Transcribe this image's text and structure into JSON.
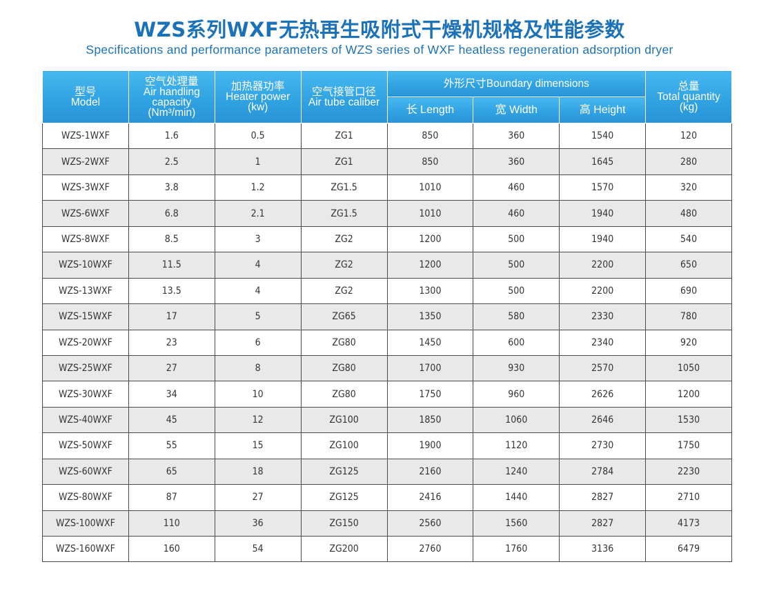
{
  "title_cn": "WZS系列WXF无热再生吸附式干燥机规格及性能参数",
  "title_en": "Specifications and performance parameters of WZS series of WXF heatless regeneration adsorption dryer",
  "colors": {
    "accent": "#1b72b8",
    "header_bg": "#2fa1e1",
    "stripe": "#e9e9e9"
  },
  "header": {
    "model": [
      "型号",
      "Model"
    ],
    "air": [
      "空气处理量",
      "Air handling",
      "capacity",
      "(Nm³/min)"
    ],
    "heater": [
      "加热器功率",
      "Heater power",
      "(kw)"
    ],
    "tube": [
      "空气接管口径",
      "Air tube caliber"
    ],
    "dims": "外形尺寸Boundary dimensions",
    "length": "长 Length",
    "width": "宽 Width",
    "height": "高 Height",
    "total": [
      "总量",
      "Total quantity",
      "(kg)"
    ]
  },
  "rows": [
    [
      "WZS-1WXF",
      "1.6",
      "0.5",
      "ZG1",
      "850",
      "360",
      "1540",
      "120"
    ],
    [
      "WZS-2WXF",
      "2.5",
      "1",
      "ZG1",
      "850",
      "360",
      "1645",
      "280"
    ],
    [
      "WZS-3WXF",
      "3.8",
      "1.2",
      "ZG1.5",
      "1010",
      "460",
      "1570",
      "320"
    ],
    [
      "WZS-6WXF",
      "6.8",
      "2.1",
      "ZG1.5",
      "1010",
      "460",
      "1940",
      "480"
    ],
    [
      "WZS-8WXF",
      "8.5",
      "3",
      "ZG2",
      "1200",
      "500",
      "1940",
      "540"
    ],
    [
      "WZS-10WXF",
      "11.5",
      "4",
      "ZG2",
      "1200",
      "500",
      "2200",
      "650"
    ],
    [
      "WZS-13WXF",
      "13.5",
      "4",
      "ZG2",
      "1300",
      "500",
      "2200",
      "690"
    ],
    [
      "WZS-15WXF",
      "17",
      "5",
      "ZG65",
      "1350",
      "580",
      "2330",
      "780"
    ],
    [
      "WZS-20WXF",
      "23",
      "6",
      "ZG80",
      "1450",
      "600",
      "2340",
      "920"
    ],
    [
      "WZS-25WXF",
      "27",
      "8",
      "ZG80",
      "1700",
      "930",
      "2570",
      "1050"
    ],
    [
      "WZS-30WXF",
      "34",
      "10",
      "ZG80",
      "1750",
      "960",
      "2626",
      "1200"
    ],
    [
      "WZS-40WXF",
      "45",
      "12",
      "ZG100",
      "1850",
      "1060",
      "2646",
      "1530"
    ],
    [
      "WZS-50WXF",
      "55",
      "15",
      "ZG100",
      "1900",
      "1120",
      "2730",
      "1750"
    ],
    [
      "WZS-60WXF",
      "65",
      "18",
      "ZG125",
      "2160",
      "1240",
      "2784",
      "2230"
    ],
    [
      "WZS-80WXF",
      "87",
      "27",
      "ZG125",
      "2416",
      "1440",
      "2827",
      "2710"
    ],
    [
      "WZS-100WXF",
      "110",
      "36",
      "ZG150",
      "2560",
      "1560",
      "2827",
      "4173"
    ],
    [
      "WZS-160WXF",
      "160",
      "54",
      "ZG200",
      "2760",
      "1760",
      "3136",
      "6479"
    ]
  ]
}
